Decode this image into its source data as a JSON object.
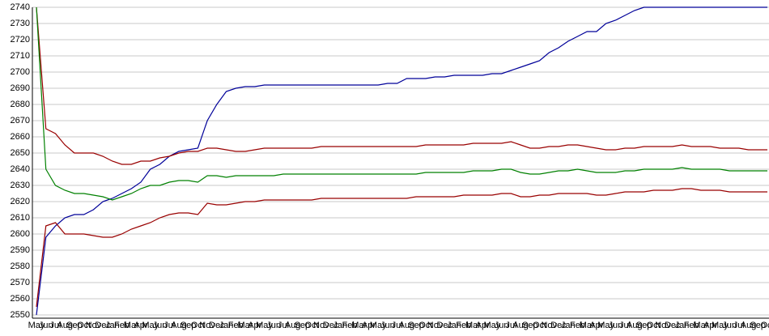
{
  "chart_data": {
    "type": "line",
    "categories": [
      "May",
      "Jun",
      "Jul",
      "Aug",
      "Sep",
      "Oct",
      "Nov",
      "Dec",
      "Jan",
      "Feb",
      "Mar",
      "Apr",
      "May",
      "Jun",
      "Jul",
      "Aug",
      "Sep",
      "Oct",
      "Nov",
      "Dec",
      "Jan",
      "Feb",
      "Mar",
      "Apr",
      "May",
      "Jun",
      "Jul",
      "Aug",
      "Sep",
      "Oct",
      "Nov",
      "Dec",
      "Jan",
      "Feb",
      "Mar",
      "Apr",
      "May",
      "Jun",
      "Jul",
      "Aug",
      "Sep",
      "Oct",
      "Nov",
      "Dec",
      "Jan",
      "Feb",
      "Mar",
      "Apr",
      "May",
      "Jun",
      "Jul",
      "Aug",
      "Sep",
      "Oct",
      "Nov",
      "Dec",
      "Jan",
      "Feb",
      "Mar",
      "Apr",
      "May",
      "Jun",
      "Jul",
      "Aug",
      "Sep",
      "Oct",
      "Nov",
      "Dec",
      "Jan",
      "Feb",
      "Mar",
      "Apr",
      "May",
      "Jun",
      "Jul",
      "Aug",
      "Sep",
      "Oct"
    ],
    "series": [
      {
        "color": "#000099",
        "values": [
          2550,
          2598,
          2605,
          2610,
          2612,
          2612,
          2615,
          2620,
          2622,
          2625,
          2628,
          2632,
          2640,
          2643,
          2648,
          2651,
          2652,
          2653,
          2670,
          2680,
          2688,
          2690,
          2691,
          2691,
          2692,
          2692,
          2692,
          2692,
          2692,
          2692,
          2692,
          2692,
          2692,
          2692,
          2692,
          2692,
          2692,
          2693,
          2693,
          2696,
          2696,
          2696,
          2697,
          2697,
          2698,
          2698,
          2698,
          2698,
          2699,
          2699,
          2701,
          2703,
          2705,
          2707,
          2712,
          2715,
          2719,
          2722,
          2725,
          2725,
          2730,
          2732,
          2735,
          2738,
          2740,
          2740,
          2740,
          2740,
          2740,
          2740,
          2740,
          2740,
          2740,
          2740,
          2740,
          2740,
          2740,
          2740
        ]
      },
      {
        "color": "#990000",
        "values": [
          2740,
          2665,
          2662,
          2655,
          2650,
          2650,
          2650,
          2648,
          2645,
          2643,
          2643,
          2645,
          2645,
          2647,
          2648,
          2650,
          2651,
          2651,
          2653,
          2653,
          2652,
          2651,
          2651,
          2652,
          2653,
          2653,
          2653,
          2653,
          2653,
          2653,
          2654,
          2654,
          2654,
          2654,
          2654,
          2654,
          2654,
          2654,
          2654,
          2654,
          2654,
          2655,
          2655,
          2655,
          2655,
          2655,
          2656,
          2656,
          2656,
          2656,
          2657,
          2655,
          2653,
          2653,
          2654,
          2654,
          2655,
          2655,
          2654,
          2653,
          2652,
          2652,
          2653,
          2653,
          2654,
          2654,
          2654,
          2654,
          2655,
          2654,
          2654,
          2654,
          2653,
          2653,
          2653,
          2652,
          2652,
          2652
        ]
      },
      {
        "color": "#008000",
        "values": [
          2740,
          2640,
          2630,
          2627,
          2625,
          2625,
          2624,
          2623,
          2621,
          2623,
          2625,
          2628,
          2630,
          2630,
          2632,
          2633,
          2633,
          2632,
          2636,
          2636,
          2635,
          2636,
          2636,
          2636,
          2636,
          2636,
          2637,
          2637,
          2637,
          2637,
          2637,
          2637,
          2637,
          2637,
          2637,
          2637,
          2637,
          2637,
          2637,
          2637,
          2637,
          2638,
          2638,
          2638,
          2638,
          2638,
          2639,
          2639,
          2639,
          2640,
          2640,
          2638,
          2637,
          2637,
          2638,
          2639,
          2639,
          2640,
          2639,
          2638,
          2638,
          2638,
          2639,
          2639,
          2640,
          2640,
          2640,
          2640,
          2641,
          2640,
          2640,
          2640,
          2640,
          2639,
          2639,
          2639,
          2639,
          2639
        ]
      },
      {
        "color": "#990000",
        "values": [
          2555,
          2605,
          2607,
          2600,
          2600,
          2600,
          2599,
          2598,
          2598,
          2600,
          2603,
          2605,
          2607,
          2610,
          2612,
          2613,
          2613,
          2612,
          2619,
          2618,
          2618,
          2619,
          2620,
          2620,
          2621,
          2621,
          2621,
          2621,
          2621,
          2621,
          2622,
          2622,
          2622,
          2622,
          2622,
          2622,
          2622,
          2622,
          2622,
          2622,
          2623,
          2623,
          2623,
          2623,
          2623,
          2624,
          2624,
          2624,
          2624,
          2625,
          2625,
          2623,
          2623,
          2624,
          2624,
          2625,
          2625,
          2625,
          2625,
          2624,
          2624,
          2625,
          2626,
          2626,
          2626,
          2627,
          2627,
          2627,
          2628,
          2628,
          2627,
          2627,
          2627,
          2626,
          2626,
          2626,
          2626,
          2626
        ]
      }
    ],
    "ylim": [
      2550,
      2740
    ],
    "yticks": [
      2550,
      2560,
      2570,
      2580,
      2590,
      2600,
      2610,
      2620,
      2630,
      2640,
      2650,
      2660,
      2670,
      2680,
      2690,
      2700,
      2710,
      2720,
      2730,
      2740
    ],
    "grid": true
  }
}
